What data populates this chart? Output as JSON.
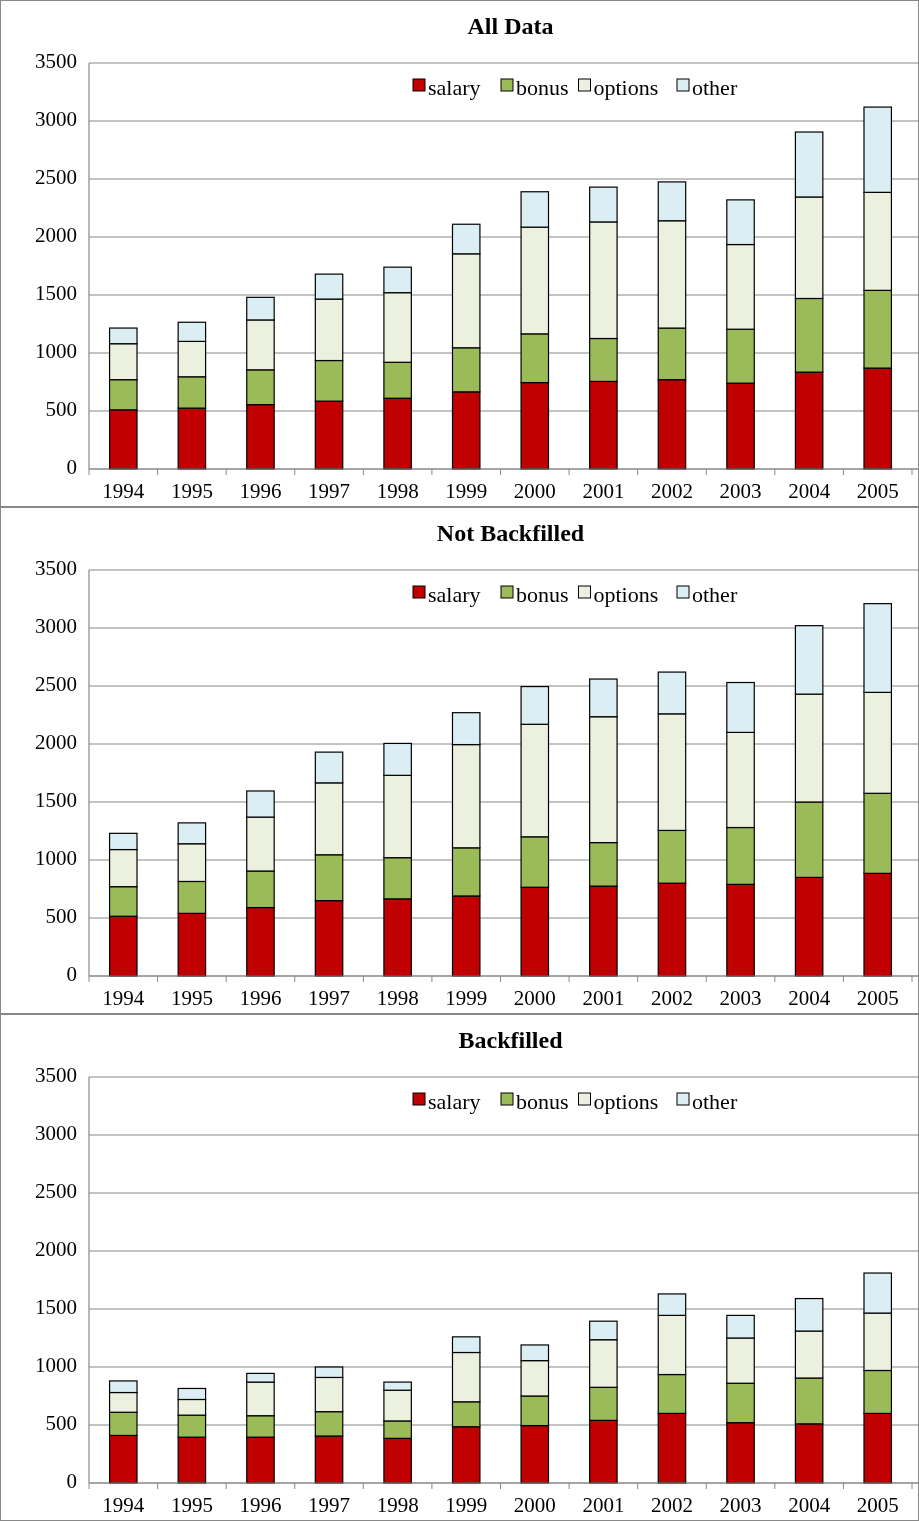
{
  "chart_data": [
    {
      "type": "bar",
      "title": "All Data",
      "stacked": true,
      "categories": [
        "1994",
        "1995",
        "1996",
        "1997",
        "1998",
        "1999",
        "2000",
        "2001",
        "2002",
        "2003",
        "2004",
        "2005"
      ],
      "ylim": [
        0,
        3500
      ],
      "yticks": [
        0,
        500,
        1000,
        1500,
        2000,
        2500,
        3000,
        3500
      ],
      "grid": "y",
      "legend": "top right",
      "series": [
        {
          "name": "salary",
          "color": "#c00000",
          "values": [
            510,
            525,
            555,
            585,
            610,
            665,
            745,
            755,
            770,
            740,
            835,
            870
          ]
        },
        {
          "name": "bonus",
          "color": "#9bbb59",
          "values": [
            260,
            270,
            300,
            350,
            310,
            380,
            420,
            370,
            445,
            465,
            635,
            670
          ]
        },
        {
          "name": "options",
          "color": "#ebf1de",
          "values": [
            310,
            305,
            430,
            530,
            600,
            810,
            920,
            1005,
            925,
            730,
            875,
            845
          ]
        },
        {
          "name": "other",
          "color": "#dbeef4",
          "values": [
            135,
            165,
            195,
            215,
            220,
            255,
            305,
            300,
            335,
            385,
            560,
            735
          ]
        }
      ]
    },
    {
      "type": "bar",
      "title": "Not Backfilled",
      "stacked": true,
      "categories": [
        "1994",
        "1995",
        "1996",
        "1997",
        "1998",
        "1999",
        "2000",
        "2001",
        "2002",
        "2003",
        "2004",
        "2005"
      ],
      "ylim": [
        0,
        3500
      ],
      "yticks": [
        0,
        500,
        1000,
        1500,
        2000,
        2500,
        3000,
        3500
      ],
      "grid": "y",
      "legend": "top right",
      "series": [
        {
          "name": "salary",
          "color": "#c00000",
          "values": [
            515,
            540,
            590,
            650,
            665,
            690,
            765,
            775,
            800,
            790,
            850,
            885
          ]
        },
        {
          "name": "bonus",
          "color": "#9bbb59",
          "values": [
            255,
            275,
            315,
            395,
            355,
            415,
            435,
            375,
            455,
            490,
            650,
            690
          ]
        },
        {
          "name": "options",
          "color": "#ebf1de",
          "values": [
            320,
            325,
            465,
            620,
            710,
            890,
            970,
            1085,
            1005,
            820,
            930,
            870
          ]
        },
        {
          "name": "other",
          "color": "#dbeef4",
          "values": [
            140,
            180,
            225,
            265,
            275,
            275,
            325,
            325,
            360,
            430,
            590,
            765
          ]
        }
      ]
    },
    {
      "type": "bar",
      "title": "Backfilled",
      "stacked": true,
      "categories": [
        "1994",
        "1995",
        "1996",
        "1997",
        "1998",
        "1999",
        "2000",
        "2001",
        "2002",
        "2003",
        "2004",
        "2005"
      ],
      "ylim": [
        0,
        3500
      ],
      "yticks": [
        0,
        500,
        1000,
        1500,
        2000,
        2500,
        3000,
        3500
      ],
      "grid": "y",
      "legend": "top right",
      "series": [
        {
          "name": "salary",
          "color": "#c00000",
          "values": [
            410,
            395,
            395,
            405,
            385,
            485,
            495,
            540,
            600,
            520,
            510,
            600
          ]
        },
        {
          "name": "bonus",
          "color": "#9bbb59",
          "values": [
            200,
            190,
            185,
            210,
            150,
            215,
            255,
            285,
            335,
            340,
            395,
            370
          ]
        },
        {
          "name": "options",
          "color": "#ebf1de",
          "values": [
            170,
            135,
            290,
            295,
            265,
            425,
            305,
            410,
            510,
            390,
            405,
            495
          ]
        },
        {
          "name": "other",
          "color": "#dbeef4",
          "values": [
            100,
            95,
            75,
            90,
            70,
            135,
            135,
            160,
            185,
            195,
            280,
            345
          ]
        }
      ]
    }
  ]
}
